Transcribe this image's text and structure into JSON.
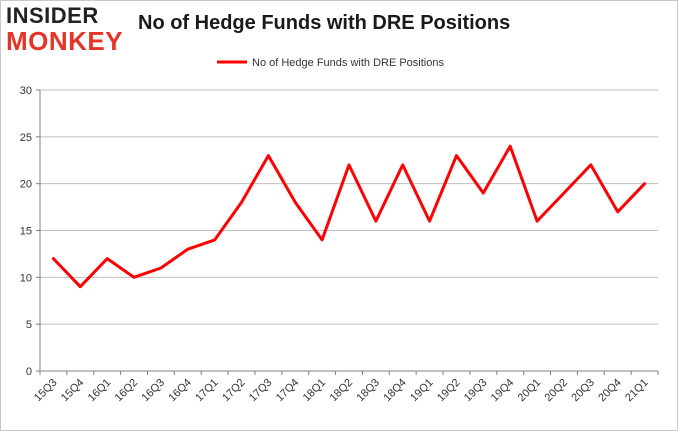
{
  "logo": {
    "line1": "INSIDER",
    "line2": "MONKEY"
  },
  "chart_data": {
    "type": "line",
    "title": "No of Hedge Funds with DRE Positions",
    "xlabel": "",
    "ylabel": "",
    "categories": [
      "15Q3",
      "15Q4",
      "16Q1",
      "16Q2",
      "16Q3",
      "16Q4",
      "17Q1",
      "17Q2",
      "17Q3",
      "17Q4",
      "18Q1",
      "18Q2",
      "18Q3",
      "18Q4",
      "19Q1",
      "19Q2",
      "19Q3",
      "19Q4",
      "20Q1",
      "20Q2",
      "20Q3",
      "20Q4",
      "21Q1"
    ],
    "series": [
      {
        "name": "No of Hedge Funds with DRE Positions",
        "color": "#ff0000",
        "values": [
          12,
          9,
          12,
          10,
          11,
          13,
          14,
          18,
          23,
          18,
          14,
          22,
          16,
          22,
          16,
          23,
          19,
          24,
          16,
          19,
          22,
          17,
          20
        ]
      }
    ],
    "ylim": [
      0,
      30
    ],
    "yticks": [
      0,
      5,
      10,
      15,
      20,
      25,
      30
    ],
    "grid": true,
    "legend_position": "top-center"
  }
}
